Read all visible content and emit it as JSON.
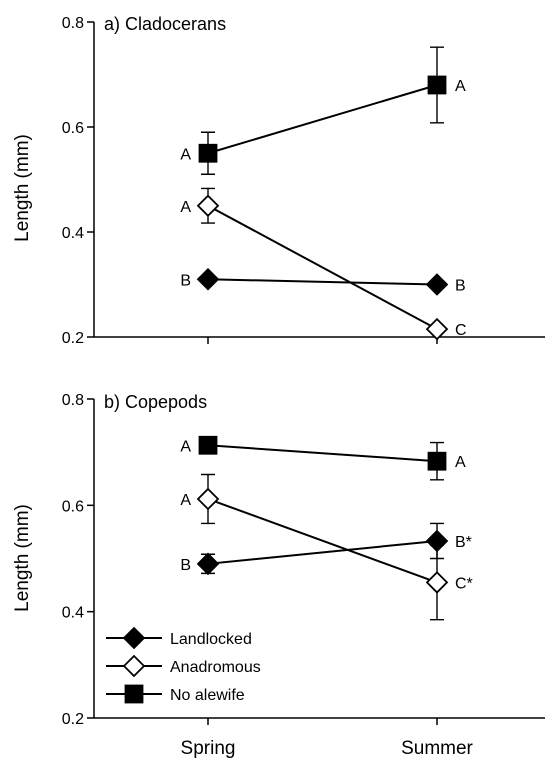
{
  "chart_data": [
    {
      "type": "line",
      "title": "a) Cladocerans",
      "ylabel": "Length (mm)",
      "xlabel": "",
      "categories": [
        "Spring",
        "Summer"
      ],
      "ylim": [
        0.2,
        0.8
      ],
      "yticks": [
        "0.2",
        "0.4",
        "0.6",
        "0.8"
      ],
      "show_categories": false,
      "series": [
        {
          "name": "Landlocked",
          "marker": "diamond",
          "fill": "#000000",
          "values": [
            0.31,
            0.3
          ],
          "errors": [
            0.0,
            0.0
          ],
          "labels": [
            "B",
            "B"
          ]
        },
        {
          "name": "Anadromous",
          "marker": "diamond",
          "fill": "#ffffff",
          "values": [
            0.45,
            0.215
          ],
          "errors": [
            0.033,
            0.0
          ],
          "labels": [
            "A",
            "C"
          ]
        },
        {
          "name": "No alewife",
          "marker": "square",
          "fill": "#000000",
          "values": [
            0.55,
            0.68
          ],
          "errors": [
            0.04,
            0.072
          ],
          "labels": [
            "A",
            "A"
          ]
        }
      ]
    },
    {
      "type": "line",
      "title": "b) Copepods",
      "ylabel": "Length (mm)",
      "xlabel": "",
      "categories": [
        "Spring",
        "Summer"
      ],
      "ylim": [
        0.2,
        0.8
      ],
      "yticks": [
        "0.2",
        "0.4",
        "0.6",
        "0.8"
      ],
      "show_categories": true,
      "series": [
        {
          "name": "Landlocked",
          "marker": "diamond",
          "fill": "#000000",
          "values": [
            0.49,
            0.533
          ],
          "errors": [
            0.018,
            0.033
          ],
          "labels": [
            "B",
            "B*"
          ]
        },
        {
          "name": "Anadromous",
          "marker": "diamond",
          "fill": "#ffffff",
          "values": [
            0.612,
            0.455
          ],
          "errors": [
            0.046,
            0.07
          ],
          "labels": [
            "A",
            "C*"
          ]
        },
        {
          "name": "No alewife",
          "marker": "square",
          "fill": "#000000",
          "values": [
            0.713,
            0.683
          ],
          "errors": [
            0.012,
            0.035
          ],
          "labels": [
            "A",
            "A"
          ]
        }
      ],
      "legend": {
        "placement": "bottom-left",
        "items": [
          "Landlocked",
          "Anadromous",
          "No alewife"
        ]
      }
    }
  ]
}
